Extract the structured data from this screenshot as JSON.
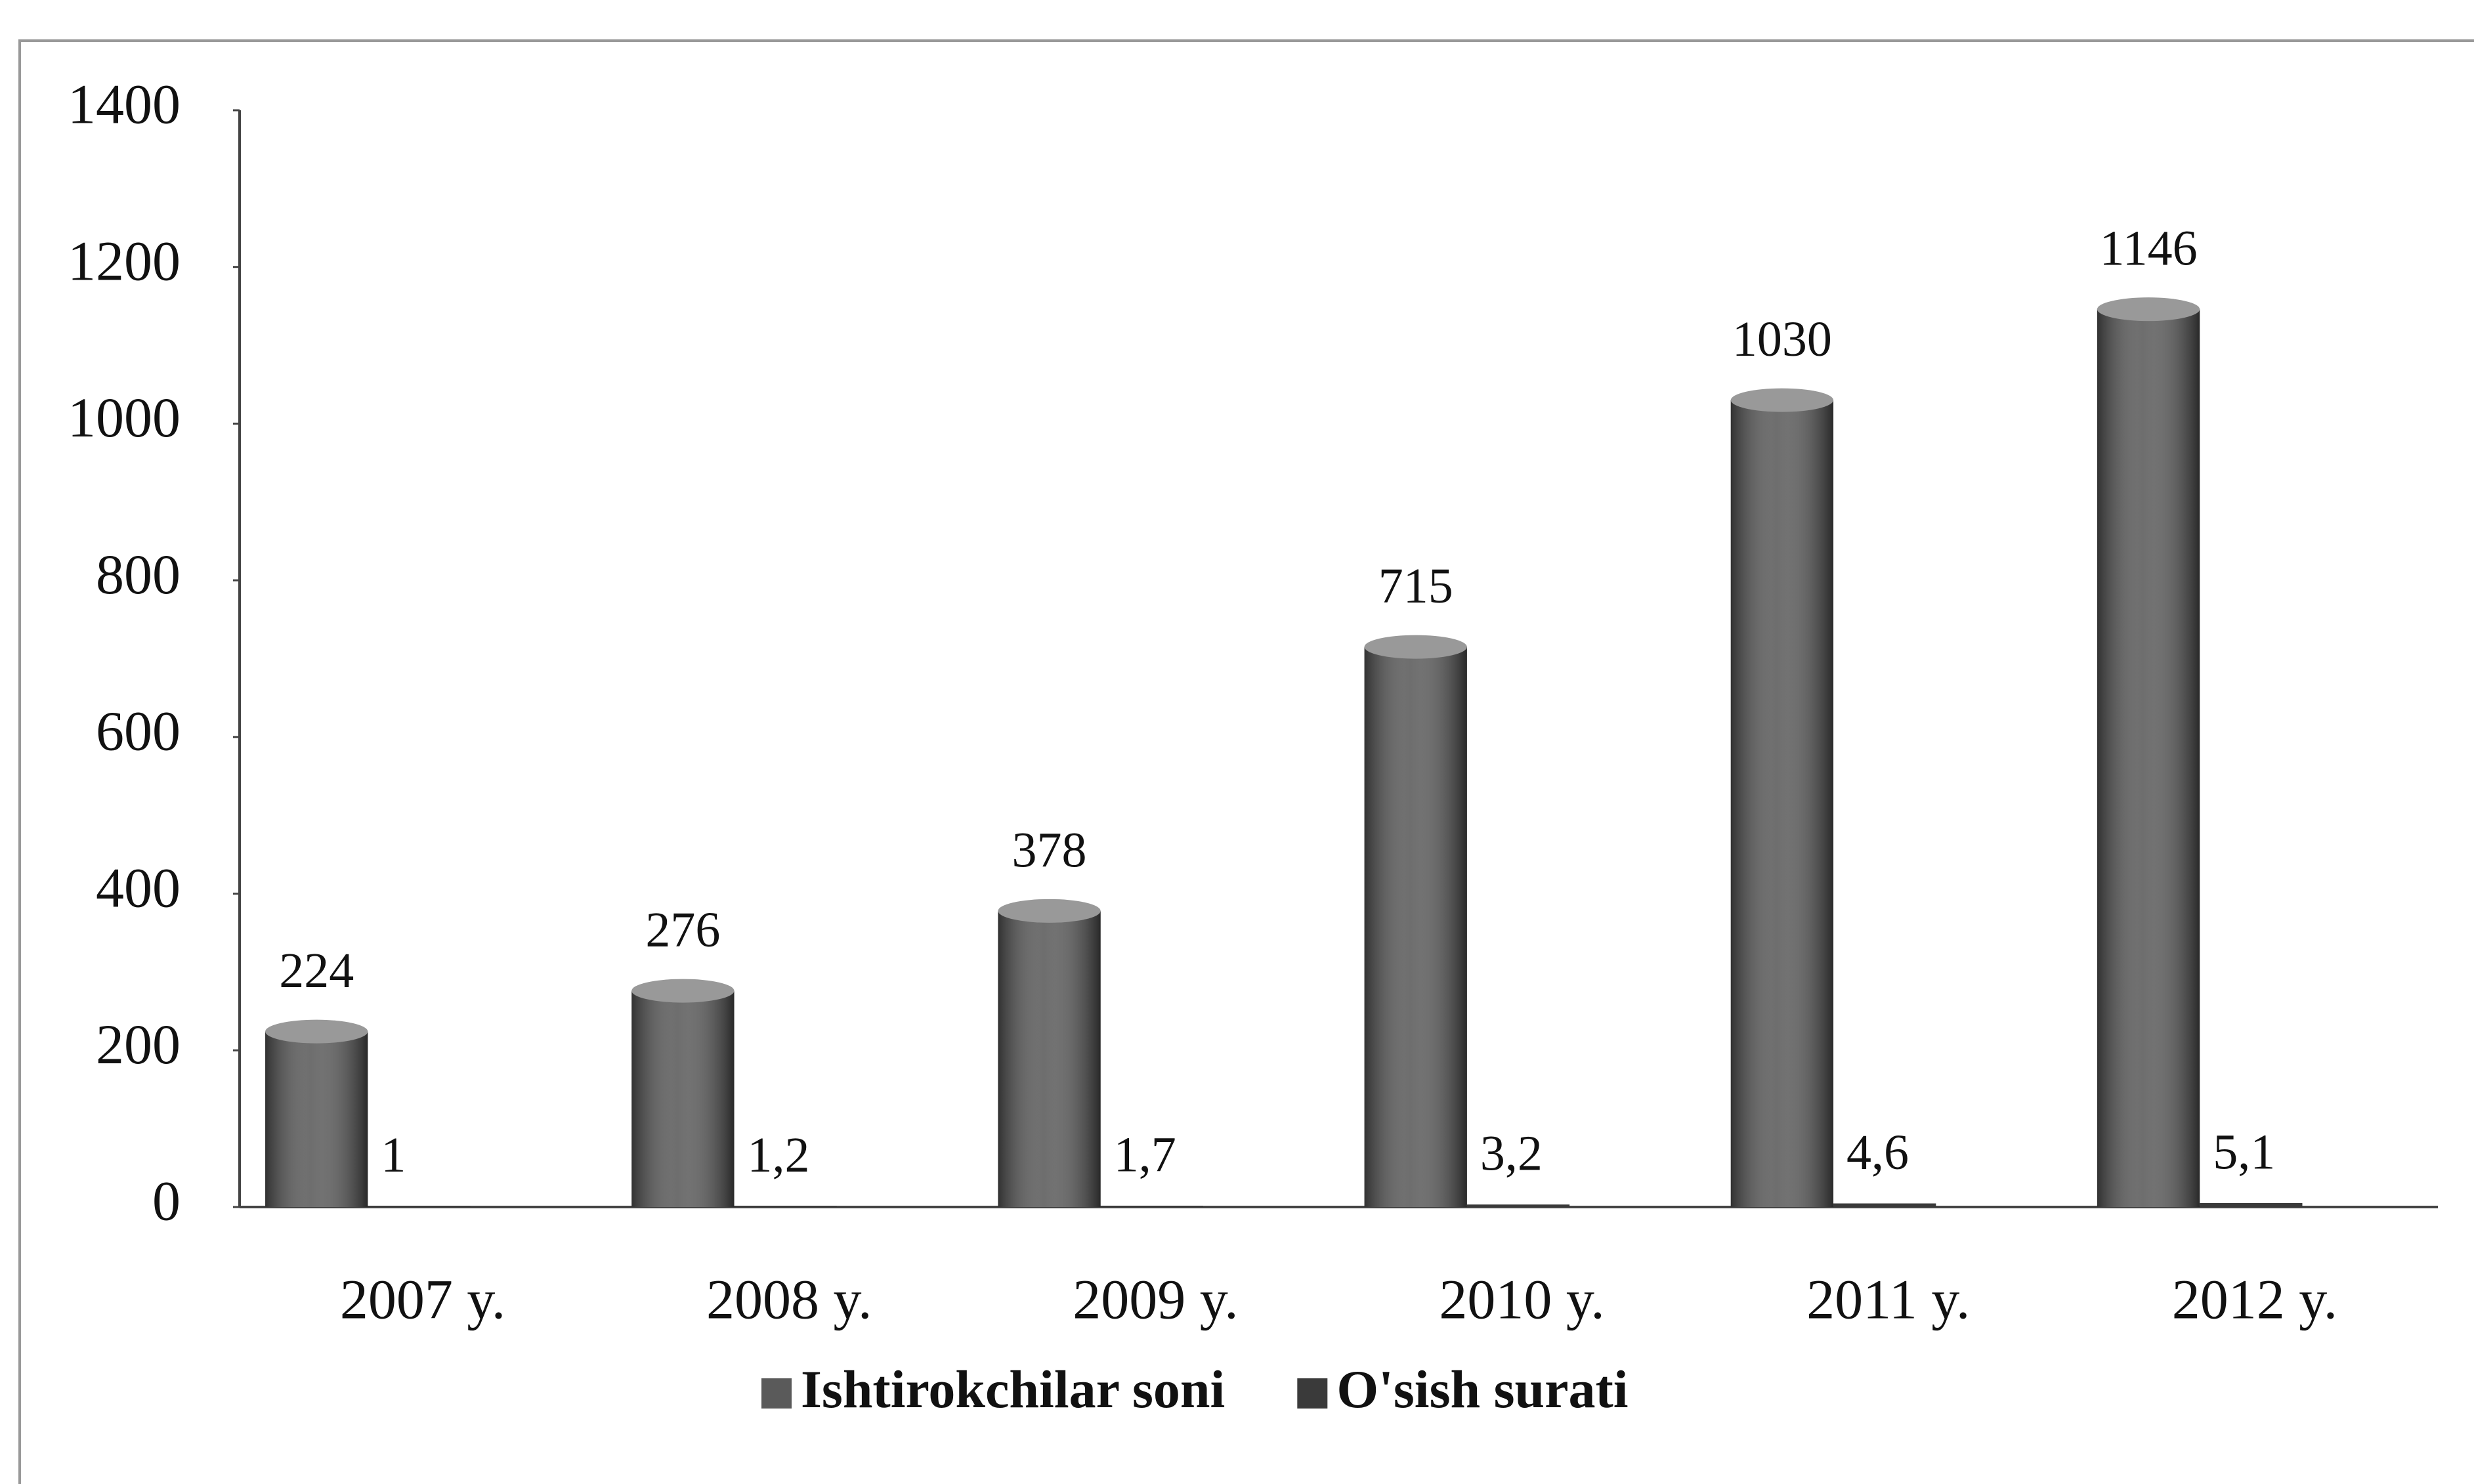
{
  "chart_data": {
    "type": "bar",
    "categories": [
      "2007 y.",
      "2008 y.",
      "2009 y.",
      "2010 y.",
      "2011 y.",
      "2012 y."
    ],
    "series": [
      {
        "name": "Ishtirokchilar soni",
        "color": "#5a5a5a",
        "values": [
          224,
          276,
          378,
          715,
          1030,
          1146
        ]
      },
      {
        "name": "O'sish surati",
        "color": "#3a3a3a",
        "values": [
          1,
          1.2,
          1.7,
          3.2,
          4.6,
          5.1
        ],
        "value_labels": [
          "1",
          "1,2",
          "1,7",
          "3,2",
          "4,6",
          "5,1"
        ]
      }
    ],
    "ylim": [
      0,
      1400
    ],
    "yticks": [
      0,
      200,
      400,
      600,
      800,
      1000,
      1200,
      1400
    ],
    "grid": false
  }
}
